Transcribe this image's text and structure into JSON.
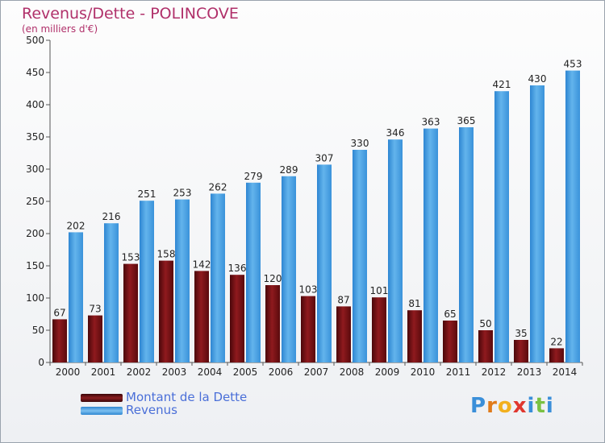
{
  "chart_data": {
    "type": "bar",
    "title": "Revenus/Dette - POLINCOVE",
    "subtitle": "(en milliers d'€)",
    "categories": [
      "2000",
      "2001",
      "2002",
      "2003",
      "2004",
      "2005",
      "2006",
      "2007",
      "2008",
      "2009",
      "2010",
      "2011",
      "2012",
      "2013",
      "2014"
    ],
    "series": [
      {
        "name": "Montant de la Dette",
        "values": [
          67,
          73,
          153,
          158,
          142,
          136,
          120,
          103,
          87,
          101,
          81,
          65,
          50,
          35,
          22
        ],
        "color": "#7a1014"
      },
      {
        "name": "Revenus",
        "values": [
          202,
          216,
          251,
          253,
          262,
          279,
          289,
          307,
          330,
          346,
          363,
          365,
          421,
          430,
          453
        ],
        "color": "#4aa3e3"
      }
    ],
    "yticks": [
      0,
      50,
      100,
      150,
      200,
      250,
      300,
      350,
      400,
      450,
      500
    ],
    "ylim": [
      0,
      500
    ],
    "grid": false,
    "legend_position": "bottom-left"
  },
  "logo": {
    "letters": [
      "P",
      "r",
      "o",
      "x",
      "i",
      "t",
      "i"
    ],
    "colors": [
      "#3a8fd9",
      "#e07b1a",
      "#f2b01e",
      "#e0372f",
      "#3a8fd9",
      "#7ac143",
      "#3a8fd9"
    ]
  }
}
